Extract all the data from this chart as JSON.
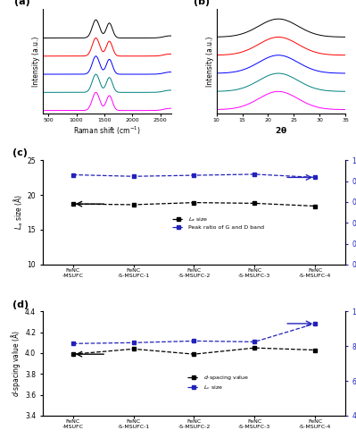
{
  "legend_labels": [
    "FeNC-MSUFC",
    "FeNC-S-MSUFC-1",
    "FeNC-S-MSUFC-2",
    "FeNC-S-MSUFC-3",
    "FeNC-S-MSUFC-4"
  ],
  "spec_colors": [
    "black",
    "red",
    "blue",
    "teal",
    "magenta"
  ],
  "La_size": [
    18.7,
    18.6,
    18.9,
    18.8,
    18.4
  ],
  "peak_ratio": [
    0.86,
    0.845,
    0.855,
    0.865,
    0.835
  ],
  "d_spacing": [
    3.99,
    4.04,
    3.99,
    4.05,
    4.03
  ],
  "Lc_vals": [
    8.15,
    8.2,
    8.3,
    8.25,
    9.3
  ],
  "xlabels": [
    "FeNC\n-MSUFC",
    "FeNC\n-S-MSUFC-1",
    "FeNC\n-S-MSUFC-2",
    "FeNC\n-S-MSUFC-3",
    "FeNC\n-S-MSUFC-4"
  ]
}
